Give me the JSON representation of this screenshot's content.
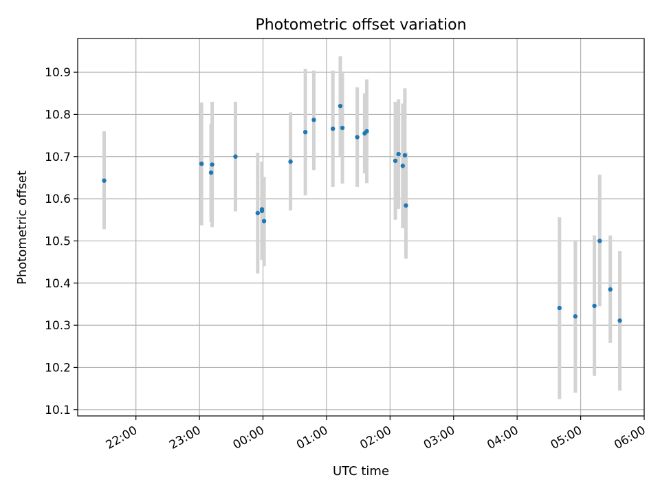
{
  "chart_data": {
    "type": "scatter",
    "title": "Photometric offset variation",
    "xlabel": "UTC time",
    "ylabel": "Photometric offset",
    "x_axis_type": "time",
    "xlim": [
      "21:05",
      "06:00"
    ],
    "ylim": [
      10.085,
      10.98
    ],
    "x_ticks": [
      "22:00",
      "23:00",
      "00:00",
      "01:00",
      "02:00",
      "03:00",
      "04:00",
      "05:00",
      "06:00"
    ],
    "y_ticks": [
      10.1,
      10.2,
      10.3,
      10.4,
      10.5,
      10.6,
      10.7,
      10.8,
      10.9
    ],
    "grid": true,
    "point_color": "#1f77b4",
    "errorbar_color": "#d3d3d3",
    "points": [
      {
        "x": "21:30",
        "y": 10.643,
        "lo": 10.528,
        "hi": 10.76
      },
      {
        "x": "23:02",
        "y": 10.683,
        "lo": 10.537,
        "hi": 10.828
      },
      {
        "x": "23:11",
        "y": 10.662,
        "lo": 10.545,
        "hi": 10.778
      },
      {
        "x": "23:12",
        "y": 10.681,
        "lo": 10.533,
        "hi": 10.83
      },
      {
        "x": "23:34",
        "y": 10.7,
        "lo": 10.57,
        "hi": 10.83
      },
      {
        "x": "23:55",
        "y": 10.566,
        "lo": 10.423,
        "hi": 10.709
      },
      {
        "x": "23:59",
        "y": 10.575,
        "lo": 10.465,
        "hi": 10.685
      },
      {
        "x": "23:59",
        "y": 10.571,
        "lo": 10.455,
        "hi": 10.688
      },
      {
        "x": "00:01",
        "y": 10.547,
        "lo": 10.44,
        "hi": 10.652
      },
      {
        "x": "00:26",
        "y": 10.688,
        "lo": 10.572,
        "hi": 10.805
      },
      {
        "x": "00:40",
        "y": 10.758,
        "lo": 10.608,
        "hi": 10.908
      },
      {
        "x": "00:48",
        "y": 10.787,
        "lo": 10.668,
        "hi": 10.904
      },
      {
        "x": "01:06",
        "y": 10.766,
        "lo": 10.628,
        "hi": 10.904
      },
      {
        "x": "01:13",
        "y": 10.82,
        "lo": 10.7,
        "hi": 10.938
      },
      {
        "x": "01:15",
        "y": 10.768,
        "lo": 10.636,
        "hi": 10.898
      },
      {
        "x": "01:29",
        "y": 10.746,
        "lo": 10.628,
        "hi": 10.864
      },
      {
        "x": "01:36",
        "y": 10.755,
        "lo": 10.66,
        "hi": 10.85
      },
      {
        "x": "01:38",
        "y": 10.76,
        "lo": 10.637,
        "hi": 10.883
      },
      {
        "x": "02:05",
        "y": 10.69,
        "lo": 10.55,
        "hi": 10.83
      },
      {
        "x": "02:08",
        "y": 10.706,
        "lo": 10.576,
        "hi": 10.836
      },
      {
        "x": "02:12",
        "y": 10.678,
        "lo": 10.53,
        "hi": 10.826
      },
      {
        "x": "02:14",
        "y": 10.703,
        "lo": 10.545,
        "hi": 10.862
      },
      {
        "x": "02:15",
        "y": 10.584,
        "lo": 10.458,
        "hi": 10.71
      },
      {
        "x": "04:40",
        "y": 10.341,
        "lo": 10.125,
        "hi": 10.556
      },
      {
        "x": "04:55",
        "y": 10.321,
        "lo": 10.14,
        "hi": 10.502
      },
      {
        "x": "05:13",
        "y": 10.346,
        "lo": 10.18,
        "hi": 10.513
      },
      {
        "x": "05:18",
        "y": 10.5,
        "lo": 10.345,
        "hi": 10.657
      },
      {
        "x": "05:28",
        "y": 10.385,
        "lo": 10.258,
        "hi": 10.513
      },
      {
        "x": "05:37",
        "y": 10.311,
        "lo": 10.145,
        "hi": 10.476
      }
    ]
  }
}
